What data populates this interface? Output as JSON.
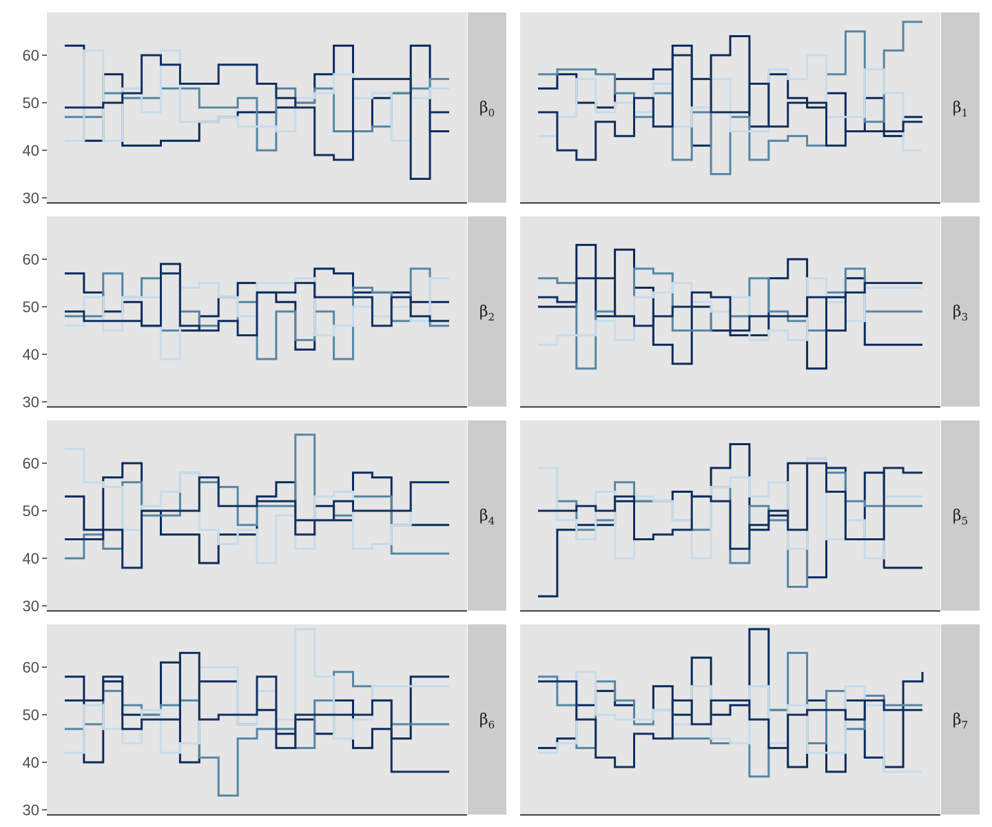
{
  "colors": {
    "panel_bg": "#e5e5e5",
    "strip_bg": "#cccccc",
    "chain_colors": [
      "#0a2a5c",
      "#5686a3",
      "#c6dceb",
      "#11305f"
    ],
    "axis_line": "#000000",
    "tick": "#333333"
  },
  "chart_data": {
    "type": "line",
    "style": "step",
    "facets": "2 columns x 4 rows, strip labels on right",
    "ylim": [
      29,
      69
    ],
    "yticks": [
      30,
      40,
      50,
      60
    ],
    "xlabel": "",
    "ylabel": "",
    "x": [
      0,
      1,
      2,
      3,
      4,
      5,
      6,
      7,
      8,
      9,
      10,
      11,
      12,
      13,
      14,
      15,
      16,
      17,
      18,
      19,
      20
    ],
    "panels": [
      {
        "label_base": "β",
        "label_sub": "0",
        "series": [
          {
            "values": [
              62,
              42,
              56,
              41,
              41,
              42,
              42,
              46,
              47,
              48,
              48,
              49,
              50,
              56,
              62,
              44,
              51,
              52,
              62,
              44,
              44
            ]
          },
          {
            "values": [
              47,
              47,
              52,
              51,
              51,
              53,
              53,
              49,
              49,
              51,
              40,
              53,
              50,
              53,
              44,
              44,
              45,
              52,
              53,
              55,
              55
            ]
          },
          {
            "values": [
              42,
              61,
              42,
              53,
              48,
              61,
              46,
              46,
              47,
              45,
              45,
              44,
              51,
              52,
              56,
              51,
              52,
              42,
              51,
              53,
              53
            ]
          },
          {
            "values": [
              49,
              49,
              50,
              52,
              60,
              58,
              54,
              54,
              58,
              58,
              54,
              51,
              49,
              39,
              38,
              55,
              55,
              55,
              34,
              48,
              48
            ]
          }
        ]
      },
      {
        "label_base": "β",
        "label_sub": "1",
        "series": [
          {
            "values": [
              53,
              56,
              50,
              49,
              55,
              55,
              57,
              62,
              41,
              60,
              64,
              45,
              56,
              51,
              49,
              52,
              44,
              51,
              43,
              47,
              47
            ]
          },
          {
            "values": [
              56,
              57,
              57,
              56,
              52,
              47,
              52,
              38,
              48,
              35,
              47,
              38,
              42,
              43,
              41,
              56,
              65,
              46,
              61,
              67,
              67
            ]
          },
          {
            "values": [
              43,
              47,
              55,
              48,
              50,
              48,
              54,
              45,
              49,
              55,
              44,
              44,
              57,
              55,
              60,
              47,
              47,
              57,
              52,
              40,
              40
            ]
          },
          {
            "values": [
              48,
              40,
              38,
              46,
              43,
              51,
              45,
              60,
              55,
              48,
              48,
              54,
              45,
              50,
              50,
              41,
              44,
              44,
              44,
              46,
              46
            ]
          }
        ]
      },
      {
        "label_base": "β",
        "label_sub": "2",
        "series": [
          {
            "values": [
              57,
              53,
              49,
              51,
              46,
              59,
              45,
              48,
              52,
              55,
              53,
              51,
              41,
              58,
              57,
              53,
              53,
              53,
              51,
              51,
              51
            ]
          },
          {
            "values": [
              48,
              48,
              57,
              52,
              56,
              45,
              49,
              46,
              47,
              51,
              39,
              49,
              43,
              49,
              39,
              54,
              53,
              47,
              58,
              46,
              46
            ]
          },
          {
            "values": [
              46,
              52,
              45,
              52,
              52,
              39,
              54,
              55,
              52,
              48,
              55,
              55,
              56,
              44,
              46,
              50,
              48,
              50,
              47,
              56,
              56
            ]
          },
          {
            "values": [
              49,
              47,
              47,
              47,
              46,
              57,
              46,
              45,
              47,
              44,
              53,
              53,
              55,
              52,
              52,
              52,
              46,
              52,
              48,
              47,
              47
            ]
          }
        ]
      },
      {
        "label_base": "β",
        "label_sub": "3",
        "series": [
          {
            "values": [
              50,
              50,
              63,
              48,
              62,
              54,
              42,
              38,
              50,
              45,
              44,
              44,
              56,
              60,
              37,
              52,
              56,
              42,
              42,
              42,
              42
            ]
          },
          {
            "values": [
              56,
              55,
              37,
              49,
              48,
              58,
              57,
              45,
              45,
              49,
              48,
              56,
              49,
              47,
              45,
              53,
              58,
              49,
              49,
              49,
              49
            ]
          },
          {
            "values": [
              42,
              44,
              44,
              47,
              43,
              52,
              53,
              55,
              51,
              49,
              52,
              43,
              45,
              43,
              56,
              51,
              47,
              54,
              54,
              54,
              54
            ]
          },
          {
            "values": [
              52,
              51,
              56,
              56,
              48,
              46,
              48,
              50,
              53,
              52,
              45,
              48,
              48,
              48,
              52,
              45,
              53,
              55,
              55,
              55,
              55
            ]
          }
        ]
      },
      {
        "label_base": "β",
        "label_sub": "4",
        "series": [
          {
            "values": [
              53,
              46,
              57,
              60,
              50,
              45,
              45,
              39,
              45,
              45,
              53,
              56,
              48,
              51,
              48,
              58,
              57,
              47,
              47,
              47,
              47
            ]
          },
          {
            "values": [
              40,
              45,
              42,
              56,
              49,
              49,
              58,
              56,
              55,
              47,
              51,
              51,
              66,
              48,
              49,
              53,
              53,
              41,
              41,
              41,
              41
            ]
          },
          {
            "values": [
              63,
              56,
              55,
              46,
              51,
              54,
              58,
              46,
              43,
              46,
              39,
              49,
              42,
              53,
              54,
              42,
              43,
              47,
              56,
              56,
              56
            ]
          },
          {
            "values": [
              44,
              44,
              46,
              38,
              50,
              50,
              50,
              57,
              51,
              51,
              52,
              52,
              45,
              48,
              52,
              50,
              50,
              50,
              56,
              56,
              56
            ]
          }
        ]
      },
      {
        "label_base": "β",
        "label_sub": "5",
        "series": [
          {
            "values": [
              32,
              46,
              47,
              47,
              52,
              52,
              52,
              54,
              53,
              59,
              64,
              46,
              49,
              60,
              36,
              59,
              44,
              58,
              38,
              38,
              38
            ]
          },
          {
            "values": [
              59,
              52,
              46,
              48,
              56,
              52,
              52,
              48,
              46,
              55,
              39,
              51,
              48,
              34,
              61,
              58,
              52,
              51,
              51,
              51,
              51
            ]
          },
          {
            "values": [
              59,
              48,
              44,
              54,
              40,
              53,
              52,
              48,
              40,
              55,
              57,
              53,
              56,
              42,
              61,
              44,
              48,
              40,
              53,
              53,
              53
            ]
          },
          {
            "values": [
              50,
              50,
              51,
              50,
              53,
              44,
              45,
              46,
              53,
              52,
              42,
              47,
              50,
              46,
              60,
              54,
              44,
              44,
              59,
              58,
              58
            ]
          }
        ]
      },
      {
        "label_base": "β",
        "label_sub": "6",
        "series": [
          {
            "values": [
              58,
              40,
              57,
              50,
              50,
              61,
              40,
              57,
              57,
              48,
              51,
              46,
              49,
              46,
              53,
              43,
              47,
              45,
              58,
              58,
              58
            ]
          },
          {
            "values": [
              47,
              48,
              55,
              52,
              50,
              52,
              53,
              41,
              33,
              45,
              47,
              47,
              43,
              53,
              59,
              56,
              53,
              48,
              48,
              48,
              48
            ]
          },
          {
            "values": [
              42,
              52,
              47,
              44,
              51,
              42,
              44,
              60,
              60,
              48,
              55,
              49,
              68,
              58,
              45,
              49,
              56,
              56,
              56,
              56,
              56
            ]
          },
          {
            "values": [
              53,
              53,
              58,
              47,
              49,
              49,
              63,
              49,
              50,
              50,
              58,
              43,
              50,
              50,
              50,
              50,
              53,
              38,
              38,
              38,
              38
            ]
          }
        ]
      },
      {
        "label_base": "β",
        "label_sub": "7",
        "series": [
          {
            "values": [
              43,
              45,
              52,
              55,
              52,
              49,
              56,
              50,
              62,
              50,
              52,
              68,
              51,
              39,
              53,
              38,
              53,
              41,
              39,
              57,
              59
            ]
          },
          {
            "values": [
              58,
              52,
              43,
              57,
              53,
              48,
              51,
              45,
              45,
              44,
              44,
              37,
              51,
              63,
              44,
              55,
              47,
              54,
              52,
              52,
              52
            ]
          },
          {
            "values": [
              42,
              44,
              59,
              50,
              49,
              49,
              51,
              48,
              56,
              45,
              44,
              56,
              44,
              52,
              42,
              42,
              56,
              52,
              38,
              38,
              38
            ]
          },
          {
            "values": [
              57,
              57,
              49,
              41,
              39,
              46,
              45,
              53,
              48,
              53,
              53,
              49,
              43,
              50,
              51,
              51,
              49,
              53,
              51,
              51,
              51
            ]
          }
        ]
      }
    ]
  }
}
